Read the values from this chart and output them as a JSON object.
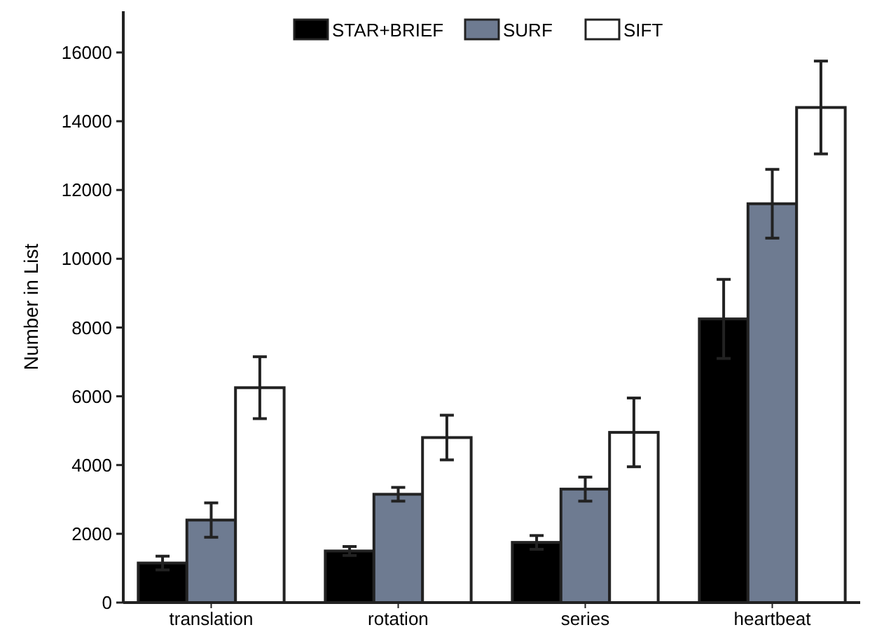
{
  "chart_data": {
    "type": "bar",
    "ylabel": "Number in List",
    "categories": [
      "translation",
      "rotation",
      "series",
      "heartbeat"
    ],
    "series": [
      {
        "name": "STAR+BRIEF",
        "color": "#000000",
        "values": [
          1150,
          1500,
          1750,
          8250
        ],
        "errors": [
          200,
          130,
          200,
          1150
        ]
      },
      {
        "name": "SURF",
        "color": "#6e7b91",
        "values": [
          2400,
          3150,
          3300,
          11600
        ],
        "errors": [
          500,
          200,
          350,
          1000
        ]
      },
      {
        "name": "SIFT",
        "color": "#ffffff",
        "values": [
          6250,
          4800,
          4950,
          14400
        ],
        "errors": [
          900,
          650,
          1000,
          1350
        ]
      }
    ],
    "ylim": [
      0,
      17200
    ],
    "yticks": [
      0,
      2000,
      4000,
      6000,
      8000,
      10000,
      12000,
      14000,
      16000
    ],
    "grid": false,
    "legend": "top"
  }
}
